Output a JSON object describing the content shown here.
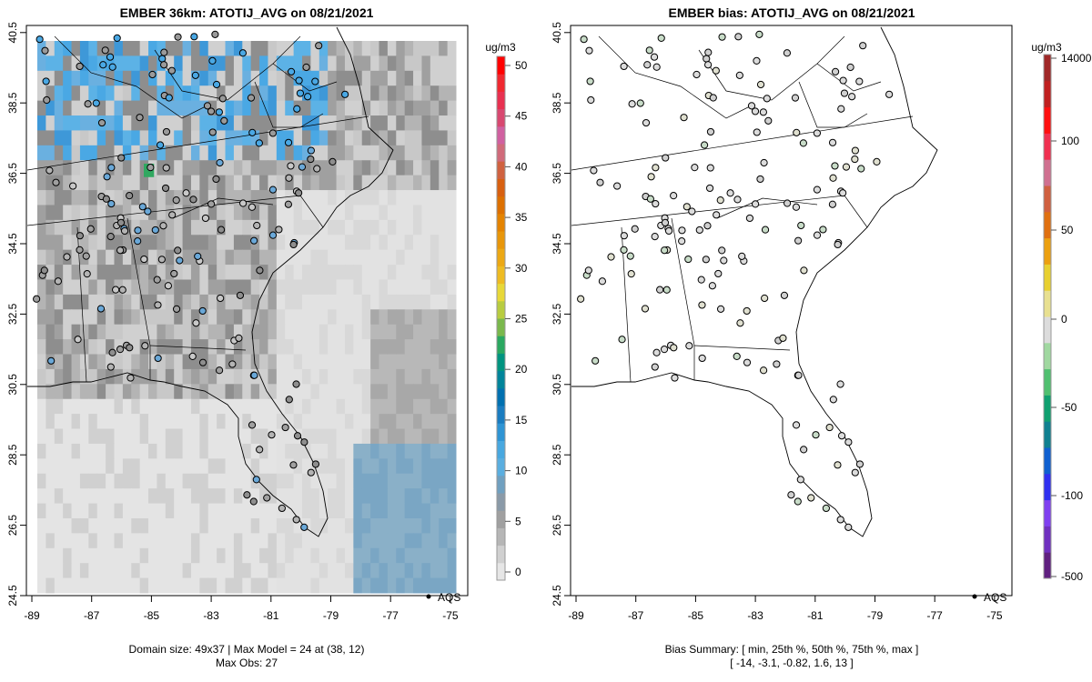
{
  "left_panel": {
    "title": "EMBER 36km: ATOTIJ_AVG on 08/21/2021",
    "colorbar_unit": "ug/m3",
    "colorbar_ticks": [
      "0",
      "5",
      "10",
      "15",
      "20",
      "25",
      "30",
      "35",
      "40",
      "45",
      "50"
    ],
    "colorbar_colors": [
      "#e6e6e6",
      "#d0d0d0",
      "#b6b6b6",
      "#a0a0a0",
      "#8a9aa8",
      "#70a0c0",
      "#5aaee0",
      "#48a8e0",
      "#2e94d4",
      "#1a7cc0",
      "#0070b0",
      "#00849a",
      "#009480",
      "#2aa860",
      "#7ab84c",
      "#b8cc40",
      "#e8d838",
      "#eebb22",
      "#eca814",
      "#e8960a",
      "#e48300",
      "#dd7000",
      "#d86010",
      "#d06240",
      "#d06a7a",
      "#d060a0",
      "#d84870",
      "#e83050",
      "#f02830",
      "#ff0000"
    ],
    "x_ticks": [
      "-89",
      "-87",
      "-85",
      "-83",
      "-81",
      "-79",
      "-77",
      "-75"
    ],
    "y_ticks": [
      "24.5",
      "26.5",
      "28.5",
      "30.5",
      "32.5",
      "34.5",
      "36.5",
      "38.5",
      "40.5"
    ],
    "legend_label": "AQS",
    "footer_line1": "Domain size: 49x37 | Max Model = 24 at (38, 12)",
    "footer_line2": "Max Obs: 27"
  },
  "right_panel": {
    "title": "EMBER bias: ATOTIJ_AVG on 08/21/2021",
    "colorbar_unit": "ug/m3",
    "colorbar_ticks": [
      "-500",
      "-100",
      "-50",
      "0",
      "50",
      "100",
      "14000"
    ],
    "x_ticks": [
      "-89",
      "-87",
      "-85",
      "-83",
      "-81",
      "-79",
      "-77",
      "-75"
    ],
    "y_ticks": [
      "24.5",
      "26.5",
      "28.5",
      "30.5",
      "32.5",
      "34.5",
      "36.5",
      "38.5",
      "40.5"
    ],
    "legend_label": "AQS",
    "footer_line1": "Bias Summary: [ min, 25th %, 50th %, 75th %, max ]",
    "footer_line2": "[ -14,   -3.1,   -0.82,   1.6,   13 ]",
    "bias_summary": {
      "min": -14,
      "p25": -3.1,
      "p50": -0.82,
      "p75": 1.6,
      "max": 13
    }
  }
}
